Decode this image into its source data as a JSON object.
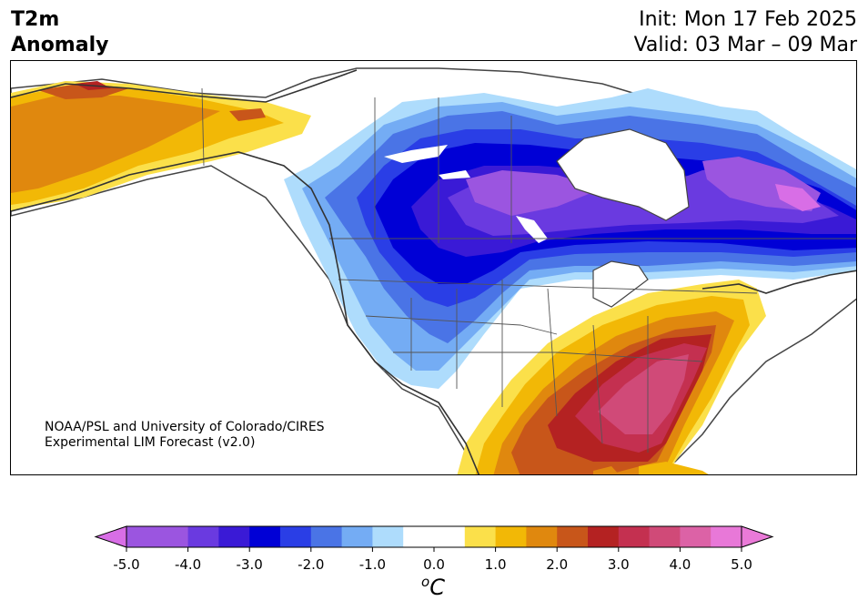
{
  "title": {
    "variable_line1": "T2m",
    "variable_line2": "Anomaly",
    "init": "Init: Mon 17 Feb 2025",
    "valid": "Valid: 03 Mar – 09 Mar"
  },
  "credit": {
    "line1": "NOAA/PSL and University of Colorado/CIRES",
    "line2": "Experimental LIM Forecast (v2.0)"
  },
  "colorbar": {
    "unit_sup": "o",
    "unit_base": "C",
    "ticks": [
      "-5.0",
      "-4.0",
      "-3.0",
      "-2.0",
      "-1.0",
      "0.0",
      "1.0",
      "2.0",
      "3.0",
      "4.0",
      "5.0"
    ],
    "bins": [
      {
        "from": -5.0,
        "to": -4.5,
        "color": "#9b55e0"
      },
      {
        "from": -4.5,
        "to": -4.0,
        "color": "#9b55e0"
      },
      {
        "from": -4.0,
        "to": -3.5,
        "color": "#6a3ae0"
      },
      {
        "from": -3.5,
        "to": -3.0,
        "color": "#3a1ad6"
      },
      {
        "from": -3.0,
        "to": -2.5,
        "color": "#0000d6"
      },
      {
        "from": -2.5,
        "to": -2.0,
        "color": "#2a3ee6"
      },
      {
        "from": -2.0,
        "to": -1.5,
        "color": "#4a74e6"
      },
      {
        "from": -1.5,
        "to": -1.0,
        "color": "#74acf4"
      },
      {
        "from": -1.0,
        "to": -0.5,
        "color": "#aedcfc"
      },
      {
        "from": -0.5,
        "to": 0.5,
        "color": "#ffffff"
      },
      {
        "from": 0.5,
        "to": 1.0,
        "color": "#fbe04a"
      },
      {
        "from": 1.0,
        "to": 1.5,
        "color": "#f2b806"
      },
      {
        "from": 1.5,
        "to": 2.0,
        "color": "#e0880e"
      },
      {
        "from": 2.0,
        "to": 2.5,
        "color": "#c8561a"
      },
      {
        "from": 2.5,
        "to": 3.0,
        "color": "#b42222"
      },
      {
        "from": 3.0,
        "to": 3.5,
        "color": "#c43050"
      },
      {
        "from": 3.5,
        "to": 4.0,
        "color": "#d04a78"
      },
      {
        "from": 4.0,
        "to": 4.5,
        "color": "#dc62a6"
      },
      {
        "from": 4.5,
        "to": 5.0,
        "color": "#e878d8"
      }
    ],
    "min_extend_color": "#d86ee6",
    "max_extend_color": "#ea7ad8"
  }
}
